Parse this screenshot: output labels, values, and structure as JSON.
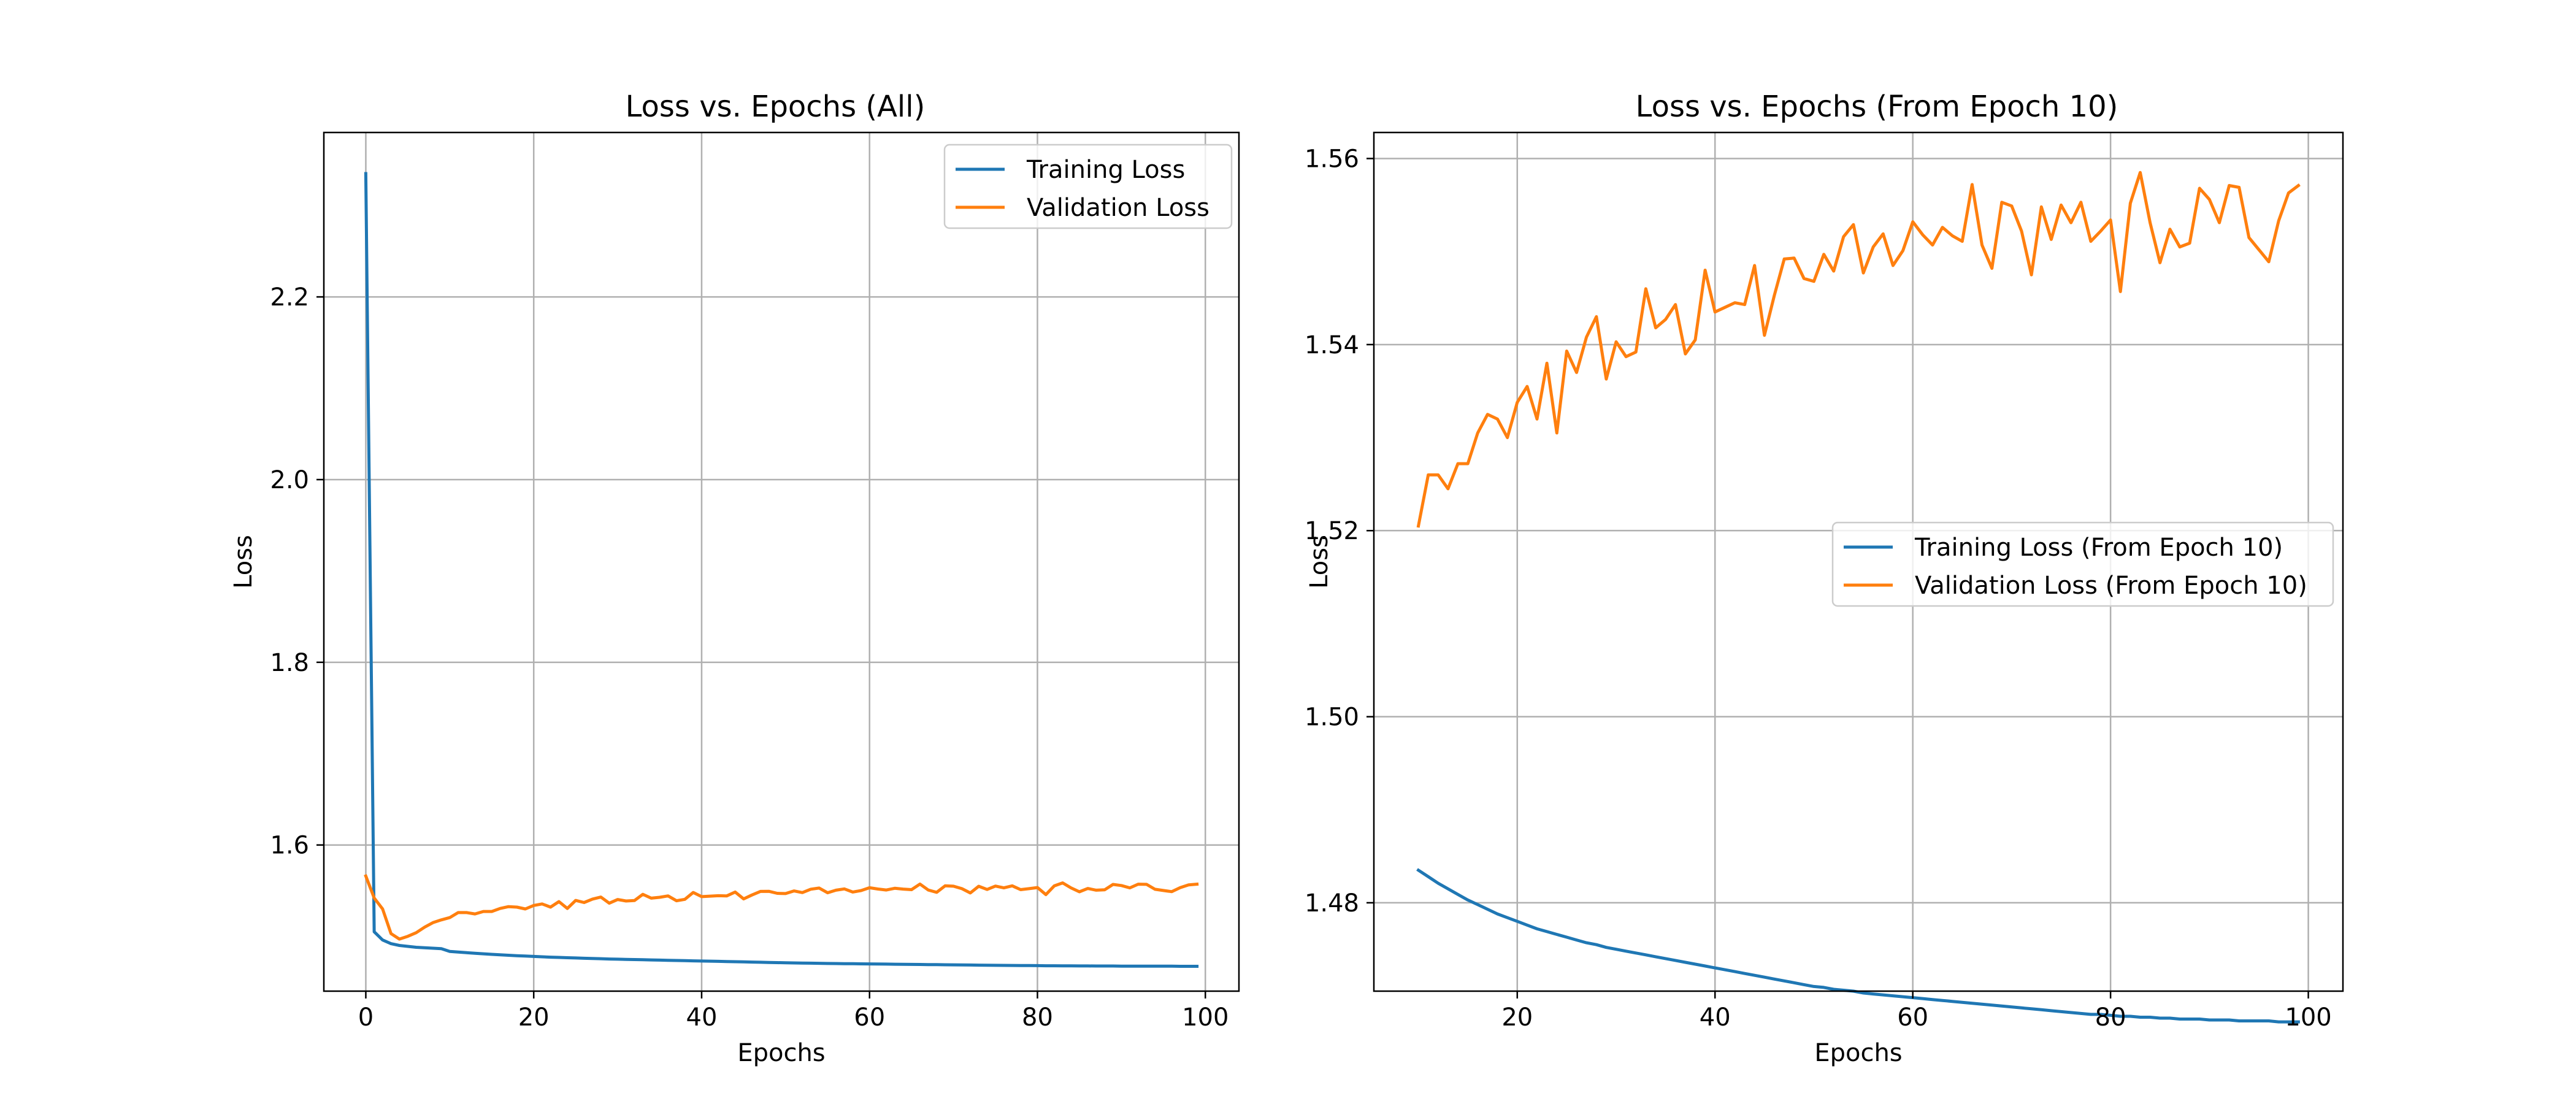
{
  "chart_data": [
    {
      "type": "line",
      "title": "Loss vs. Epochs (All)",
      "xlabel": "Epochs",
      "ylabel": "Loss",
      "xlim": [
        -5,
        104
      ],
      "ylim": [
        1.44,
        2.38
      ],
      "xticks": [
        0,
        20,
        40,
        60,
        80,
        100
      ],
      "yticks": [
        1.6,
        1.8,
        2.0,
        2.2
      ],
      "grid": true,
      "legend": "top-right",
      "series": [
        {
          "name": "Training Loss",
          "color": "#1f77b4",
          "x": [
            0,
            1,
            2,
            3,
            4,
            5,
            6,
            7,
            8,
            9,
            10,
            11,
            12,
            13,
            14,
            15,
            16,
            17,
            18,
            19,
            20,
            21,
            22,
            23,
            24,
            25,
            26,
            27,
            28,
            29,
            30,
            31,
            32,
            33,
            34,
            35,
            36,
            37,
            38,
            39,
            40,
            41,
            42,
            43,
            44,
            45,
            46,
            47,
            48,
            49,
            50,
            51,
            52,
            53,
            54,
            55,
            56,
            57,
            58,
            59,
            60,
            61,
            62,
            63,
            64,
            65,
            66,
            67,
            68,
            69,
            70,
            71,
            72,
            73,
            74,
            75,
            76,
            77,
            78,
            79,
            80,
            81,
            82,
            83,
            84,
            85,
            86,
            87,
            88,
            89,
            90,
            91,
            92,
            93,
            94,
            95,
            96,
            97,
            98,
            99
          ],
          "y": [
            2.335,
            1.505,
            1.496,
            1.492,
            1.49,
            1.489,
            1.488,
            1.4875,
            1.487,
            1.4865,
            1.4835,
            1.4828,
            1.4821,
            1.4815,
            1.4809,
            1.4803,
            1.4798,
            1.4793,
            1.4788,
            1.4784,
            1.478,
            1.4776,
            1.4772,
            1.4769,
            1.4766,
            1.4763,
            1.476,
            1.4757,
            1.4755,
            1.4752,
            1.475,
            1.4748,
            1.4746,
            1.4744,
            1.4742,
            1.474,
            1.4738,
            1.4736,
            1.4734,
            1.4732,
            1.473,
            1.4728,
            1.4726,
            1.4724,
            1.4722,
            1.472,
            1.4718,
            1.4716,
            1.4714,
            1.4712,
            1.471,
            1.4709,
            1.4707,
            1.4706,
            1.4705,
            1.4703,
            1.4702,
            1.4701,
            1.47,
            1.4699,
            1.4698,
            1.4697,
            1.4696,
            1.4695,
            1.4694,
            1.4693,
            1.4692,
            1.4691,
            1.469,
            1.4689,
            1.4688,
            1.4687,
            1.4686,
            1.4685,
            1.4684,
            1.4683,
            1.4682,
            1.4681,
            1.468,
            1.468,
            1.4679,
            1.4678,
            1.4678,
            1.4677,
            1.4677,
            1.4676,
            1.4676,
            1.4675,
            1.4675,
            1.4675,
            1.4674,
            1.4674,
            1.4674,
            1.4673,
            1.4673,
            1.4673,
            1.4673,
            1.4672,
            1.4672,
            1.4672
          ]
        },
        {
          "name": "Validation Loss",
          "color": "#ff7f0e",
          "x": [
            0,
            1,
            2,
            3,
            4,
            5,
            6,
            7,
            8,
            9,
            10,
            11,
            12,
            13,
            14,
            15,
            16,
            17,
            18,
            19,
            20,
            21,
            22,
            23,
            24,
            25,
            26,
            27,
            28,
            29,
            30,
            31,
            32,
            33,
            34,
            35,
            36,
            37,
            38,
            39,
            40,
            41,
            42,
            43,
            44,
            45,
            46,
            47,
            48,
            49,
            50,
            51,
            52,
            53,
            54,
            55,
            56,
            57,
            58,
            59,
            60,
            61,
            62,
            63,
            64,
            65,
            66,
            67,
            68,
            69,
            70,
            71,
            72,
            73,
            74,
            75,
            76,
            77,
            78,
            79,
            80,
            81,
            82,
            83,
            84,
            85,
            86,
            87,
            88,
            89,
            90,
            91,
            92,
            93,
            94,
            95,
            96,
            97,
            98,
            99
          ],
          "y": [
            1.566,
            1.542,
            1.53,
            1.503,
            1.497,
            1.5,
            1.504,
            1.51,
            1.515,
            1.518,
            1.5205,
            1.526,
            1.526,
            1.5245,
            1.5272,
            1.5272,
            1.5305,
            1.5325,
            1.532,
            1.53,
            1.5338,
            1.5355,
            1.532,
            1.538,
            1.5305,
            1.5393,
            1.537,
            1.5408,
            1.543,
            1.5363,
            1.5403,
            1.5387,
            1.5392,
            1.546,
            1.5418,
            1.5427,
            1.5443,
            1.539,
            1.5405,
            1.548,
            1.5435,
            1.544,
            1.5445,
            1.5443,
            1.5485,
            1.541,
            1.5453,
            1.5492,
            1.5493,
            1.5471,
            1.5468,
            1.5497,
            1.5479,
            1.5516,
            1.5529,
            1.5477,
            1.5505,
            1.5519,
            1.5485,
            1.5501,
            1.5532,
            1.5518,
            1.5507,
            1.5526,
            1.5517,
            1.5511,
            1.5572,
            1.5507,
            1.5482,
            1.5553,
            1.5549,
            1.5522,
            1.5475,
            1.5548,
            1.5513,
            1.555,
            1.5531,
            1.5553,
            1.5511,
            1.5522,
            1.5534,
            1.5457,
            1.5552,
            1.5585,
            1.5531,
            1.5488,
            1.5524,
            1.5505,
            1.5509,
            1.5568,
            1.5556,
            1.5531,
            1.5571,
            1.5569,
            1.5515,
            1.5502,
            1.5489,
            1.5533,
            1.5563,
            1.5571
          ]
        }
      ]
    },
    {
      "type": "line",
      "title": "Loss vs. Epochs (From Epoch 10)",
      "xlabel": "Epochs",
      "ylabel": "Loss",
      "xlim": [
        5.5,
        103.5
      ],
      "ylim": [
        1.4705,
        1.5628
      ],
      "xticks": [
        20,
        40,
        60,
        80,
        100
      ],
      "yticks": [
        1.48,
        1.5,
        1.52,
        1.54,
        1.56
      ],
      "grid": true,
      "legend": "center-right",
      "series": [
        {
          "name": "Training Loss (From Epoch 10)",
          "color": "#1f77b4",
          "x": [
            10,
            11,
            12,
            13,
            14,
            15,
            16,
            17,
            18,
            19,
            20,
            21,
            22,
            23,
            24,
            25,
            26,
            27,
            28,
            29,
            30,
            31,
            32,
            33,
            34,
            35,
            36,
            37,
            38,
            39,
            40,
            41,
            42,
            43,
            44,
            45,
            46,
            47,
            48,
            49,
            50,
            51,
            52,
            53,
            54,
            55,
            56,
            57,
            58,
            59,
            60,
            61,
            62,
            63,
            64,
            65,
            66,
            67,
            68,
            69,
            70,
            71,
            72,
            73,
            74,
            75,
            76,
            77,
            78,
            79,
            80,
            81,
            82,
            83,
            84,
            85,
            86,
            87,
            88,
            89,
            90,
            91,
            92,
            93,
            94,
            95,
            96,
            97,
            98,
            99
          ],
          "y": [
            1.4835,
            1.4828,
            1.4821,
            1.4815,
            1.4809,
            1.4803,
            1.4798,
            1.4793,
            1.4788,
            1.4784,
            1.478,
            1.4776,
            1.4772,
            1.4769,
            1.4766,
            1.4763,
            1.476,
            1.4757,
            1.4755,
            1.4752,
            1.475,
            1.4748,
            1.4746,
            1.4744,
            1.4742,
            1.474,
            1.4738,
            1.4736,
            1.4734,
            1.4732,
            1.473,
            1.4728,
            1.4726,
            1.4724,
            1.4722,
            1.472,
            1.4718,
            1.4716,
            1.4714,
            1.4712,
            1.471,
            1.4709,
            1.4707,
            1.4706,
            1.4705,
            1.4703,
            1.4702,
            1.4701,
            1.47,
            1.4699,
            1.4698,
            1.4697,
            1.4696,
            1.4695,
            1.4694,
            1.4693,
            1.4692,
            1.4691,
            1.469,
            1.4689,
            1.4688,
            1.4687,
            1.4686,
            1.4685,
            1.4684,
            1.4683,
            1.4682,
            1.4681,
            1.468,
            1.468,
            1.4679,
            1.4678,
            1.4678,
            1.4677,
            1.4677,
            1.4676,
            1.4676,
            1.4675,
            1.4675,
            1.4675,
            1.4674,
            1.4674,
            1.4674,
            1.4673,
            1.4673,
            1.4673,
            1.4673,
            1.4672,
            1.4672,
            1.4672
          ]
        },
        {
          "name": "Validation Loss (From Epoch 10)",
          "color": "#ff7f0e",
          "x": [
            10,
            11,
            12,
            13,
            14,
            15,
            16,
            17,
            18,
            19,
            20,
            21,
            22,
            23,
            24,
            25,
            26,
            27,
            28,
            29,
            30,
            31,
            32,
            33,
            34,
            35,
            36,
            37,
            38,
            39,
            40,
            41,
            42,
            43,
            44,
            45,
            46,
            47,
            48,
            49,
            50,
            51,
            52,
            53,
            54,
            55,
            56,
            57,
            58,
            59,
            60,
            61,
            62,
            63,
            64,
            65,
            66,
            67,
            68,
            69,
            70,
            71,
            72,
            73,
            74,
            75,
            76,
            77,
            78,
            79,
            80,
            81,
            82,
            83,
            84,
            85,
            86,
            87,
            88,
            89,
            90,
            91,
            92,
            93,
            94,
            95,
            96,
            97,
            98,
            99
          ],
          "y": [
            1.5205,
            1.526,
            1.526,
            1.5245,
            1.5272,
            1.5272,
            1.5305,
            1.5325,
            1.532,
            1.53,
            1.5338,
            1.5355,
            1.532,
            1.538,
            1.5305,
            1.5393,
            1.537,
            1.5408,
            1.543,
            1.5363,
            1.5403,
            1.5387,
            1.5392,
            1.546,
            1.5418,
            1.5427,
            1.5443,
            1.539,
            1.5405,
            1.548,
            1.5435,
            1.544,
            1.5445,
            1.5443,
            1.5485,
            1.541,
            1.5453,
            1.5492,
            1.5493,
            1.5471,
            1.5468,
            1.5497,
            1.5479,
            1.5516,
            1.5529,
            1.5477,
            1.5505,
            1.5519,
            1.5485,
            1.5501,
            1.5532,
            1.5518,
            1.5507,
            1.5526,
            1.5517,
            1.5511,
            1.5572,
            1.5507,
            1.5482,
            1.5553,
            1.5549,
            1.5522,
            1.5475,
            1.5548,
            1.5513,
            1.555,
            1.5531,
            1.5553,
            1.5511,
            1.5522,
            1.5534,
            1.5457,
            1.5552,
            1.5585,
            1.5531,
            1.5488,
            1.5524,
            1.5505,
            1.5509,
            1.5568,
            1.5556,
            1.5531,
            1.5571,
            1.5569,
            1.5515,
            1.5502,
            1.5489,
            1.5533,
            1.5563,
            1.5571
          ]
        }
      ]
    }
  ]
}
